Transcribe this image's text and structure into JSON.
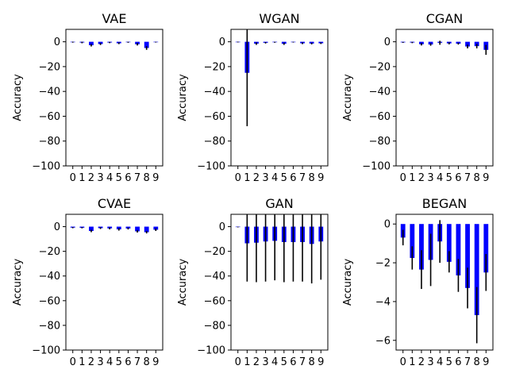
{
  "colors": {
    "bar": "#0000ff",
    "error": "#000000",
    "frame": "#000000"
  },
  "chart_data": [
    {
      "type": "bar",
      "title": "VAE",
      "ylabel": "Accuracy",
      "categories": [
        "0",
        "1",
        "2",
        "3",
        "4",
        "5",
        "6",
        "7",
        "8",
        "9"
      ],
      "ylim": [
        -100,
        10
      ],
      "yticks": [
        0,
        -20,
        -40,
        -60,
        -80,
        -100
      ],
      "values": [
        -0.3,
        -0.6,
        -2.8,
        -1.8,
        -0.6,
        -1.2,
        -0.4,
        -2.0,
        -5.0,
        -0.3
      ],
      "errors": [
        0.4,
        0.6,
        1.0,
        0.8,
        0.5,
        0.7,
        0.4,
        1.0,
        1.5,
        0.3
      ],
      "grid": false,
      "legend": "none"
    },
    {
      "type": "bar",
      "title": "WGAN",
      "ylabel": "Accuracy",
      "categories": [
        "0",
        "1",
        "2",
        "3",
        "4",
        "5",
        "6",
        "7",
        "8",
        "9"
      ],
      "ylim": [
        -100,
        10
      ],
      "yticks": [
        0,
        -20,
        -40,
        -60,
        -80,
        -100
      ],
      "values": [
        -0.2,
        -25.0,
        -1.5,
        -0.8,
        -0.4,
        -1.6,
        -0.3,
        -1.2,
        -1.4,
        -1.2
      ],
      "errors": [
        0.3,
        43.0,
        1.0,
        0.6,
        0.4,
        0.9,
        0.3,
        0.7,
        0.7,
        0.6
      ],
      "grid": false,
      "legend": "none"
    },
    {
      "type": "bar",
      "title": "CGAN",
      "ylabel": "Accuracy",
      "categories": [
        "0",
        "1",
        "2",
        "3",
        "4",
        "5",
        "6",
        "7",
        "8",
        "9"
      ],
      "ylim": [
        -100,
        10
      ],
      "yticks": [
        0,
        -20,
        -40,
        -60,
        -80,
        -100
      ],
      "values": [
        -0.5,
        -0.6,
        -2.0,
        -2.2,
        -0.8,
        -1.3,
        -1.5,
        -3.8,
        -3.5,
        -6.5
      ],
      "errors": [
        0.4,
        0.5,
        1.0,
        1.0,
        1.6,
        0.8,
        0.8,
        1.5,
        1.8,
        4.0
      ],
      "grid": false,
      "legend": "none"
    },
    {
      "type": "bar",
      "title": "CVAE",
      "ylabel": "Accuracy",
      "categories": [
        "0",
        "1",
        "2",
        "3",
        "4",
        "5",
        "6",
        "7",
        "8",
        "9"
      ],
      "ylim": [
        -100,
        10
      ],
      "yticks": [
        0,
        -20,
        -40,
        -60,
        -80,
        -100
      ],
      "values": [
        -0.8,
        -0.9,
        -3.5,
        -1.2,
        -1.4,
        -2.2,
        -1.5,
        -3.8,
        -4.5,
        -2.5
      ],
      "errors": [
        0.5,
        0.5,
        1.0,
        0.7,
        0.8,
        1.0,
        0.8,
        1.0,
        1.0,
        1.0
      ],
      "grid": false,
      "legend": "none"
    },
    {
      "type": "bar",
      "title": "GAN",
      "ylabel": "Accuracy",
      "categories": [
        "0",
        "1",
        "2",
        "3",
        "4",
        "5",
        "6",
        "7",
        "8",
        "9"
      ],
      "ylim": [
        -100,
        10
      ],
      "yticks": [
        0,
        -20,
        -40,
        -60,
        -80,
        -100
      ],
      "values": [
        -0.3,
        -13.5,
        -13.0,
        -12.0,
        -11.5,
        -12.5,
        -12.5,
        -12.5,
        -14.0,
        -12.0
      ],
      "errors": [
        0.3,
        31.0,
        32.0,
        32.5,
        32.0,
        32.5,
        32.0,
        32.0,
        32.0,
        31.0
      ],
      "grid": false,
      "legend": "none"
    },
    {
      "type": "bar",
      "title": "BEGAN",
      "ylabel": "Accuracy",
      "categories": [
        "0",
        "1",
        "2",
        "3",
        "4",
        "5",
        "6",
        "7",
        "8",
        "9"
      ],
      "ylim": [
        -6.5,
        0.5
      ],
      "yticks": [
        0,
        -2,
        -4,
        -6
      ],
      "values": [
        -0.7,
        -1.75,
        -2.35,
        -1.85,
        -0.9,
        -1.95,
        -2.65,
        -3.3,
        -4.7,
        -2.5
      ],
      "errors": [
        0.4,
        0.6,
        1.0,
        1.35,
        1.1,
        0.55,
        0.85,
        1.05,
        1.45,
        0.95
      ],
      "grid": false,
      "legend": "none"
    }
  ]
}
